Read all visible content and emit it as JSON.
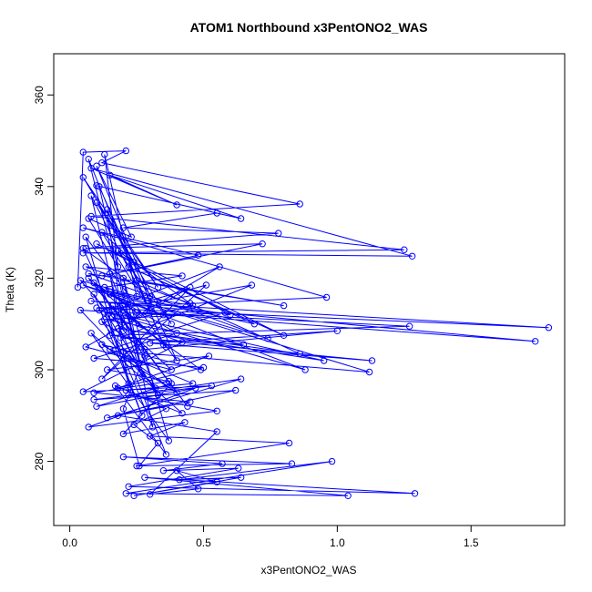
{
  "chart_data": {
    "type": "line",
    "title": "ATOM1 Northbound x3PentONO2_WAS",
    "xlabel": "x3PentONO2_WAS",
    "ylabel": "Theta (K)",
    "xlim": [
      -0.06,
      1.85
    ],
    "ylim": [
      266,
      369
    ],
    "xticks": [
      0.0,
      0.5,
      1.0,
      1.5
    ],
    "xtick_labels": [
      "0.0",
      "0.5",
      "1.0",
      "1.5"
    ],
    "yticks": [
      280,
      300,
      320,
      340,
      360
    ],
    "ytick_labels": [
      "280",
      "300",
      "320",
      "340",
      "360"
    ],
    "grid": false,
    "marker": "open-circle",
    "color": "#0000ff",
    "series": [
      {
        "values": [
          [
            0.03,
            318.0
          ],
          [
            0.05,
            347.5
          ],
          [
            0.21,
            347.8
          ],
          [
            0.12,
            345.2
          ],
          [
            0.86,
            336.2
          ],
          [
            0.08,
            333.5
          ],
          [
            1.25,
            326.2
          ],
          [
            0.05,
            325.5
          ],
          [
            1.28,
            324.8
          ],
          [
            0.08,
            344.0
          ],
          [
            0.4,
            336.0
          ],
          [
            0.15,
            342.5
          ],
          [
            0.64,
            333.0
          ],
          [
            0.1,
            340.2
          ],
          [
            0.55,
            334.2
          ],
          [
            0.2,
            331.0
          ],
          [
            0.78,
            329.8
          ],
          [
            0.06,
            326.5
          ],
          [
            0.72,
            327.5
          ],
          [
            0.12,
            320.5
          ],
          [
            0.48,
            325.0
          ],
          [
            0.05,
            331.0
          ],
          [
            0.96,
            315.8
          ],
          [
            0.1,
            313.5
          ],
          [
            1.79,
            309.2
          ],
          [
            0.08,
            315.0
          ],
          [
            1.74,
            306.2
          ],
          [
            0.25,
            312.5
          ],
          [
            1.27,
            309.5
          ],
          [
            0.15,
            307.5
          ],
          [
            1.13,
            302.0
          ],
          [
            0.3,
            305.8
          ],
          [
            1.0,
            308.5
          ],
          [
            0.2,
            304.0
          ],
          [
            1.12,
            299.5
          ],
          [
            0.05,
            318.5
          ],
          [
            0.88,
            300.0
          ],
          [
            0.11,
            313.0
          ],
          [
            0.95,
            302.0
          ],
          [
            0.18,
            309.0
          ],
          [
            0.86,
            303.5
          ],
          [
            0.25,
            319.5
          ],
          [
            0.8,
            314.0
          ],
          [
            0.07,
            321.0
          ],
          [
            0.74,
            306.8
          ],
          [
            0.15,
            317.0
          ],
          [
            0.69,
            310.0
          ],
          [
            0.22,
            322.5
          ],
          [
            0.8,
            307.5
          ],
          [
            0.1,
            327.5
          ],
          [
            0.6,
            312.0
          ],
          [
            0.29,
            315.0
          ],
          [
            0.51,
            318.5
          ],
          [
            0.12,
            298.0
          ],
          [
            0.45,
            318.0
          ],
          [
            0.06,
            305.0
          ],
          [
            0.38,
            300.0
          ],
          [
            0.16,
            311.5
          ],
          [
            0.42,
            306.0
          ],
          [
            0.05,
            295.2
          ],
          [
            0.53,
            296.5
          ],
          [
            0.09,
            293.5
          ],
          [
            0.62,
            295.5
          ],
          [
            0.14,
            289.5
          ],
          [
            0.64,
            298.0
          ],
          [
            0.22,
            294.5
          ],
          [
            0.55,
            291.0
          ],
          [
            0.07,
            287.5
          ],
          [
            0.47,
            296.0
          ],
          [
            0.1,
            292.0
          ],
          [
            0.38,
            297.0
          ],
          [
            0.2,
            286.0
          ],
          [
            0.43,
            288.5
          ],
          [
            0.3,
            285.5
          ],
          [
            0.82,
            284.0
          ],
          [
            0.25,
            279.0
          ],
          [
            0.83,
            279.5
          ],
          [
            0.2,
            281.0
          ],
          [
            0.57,
            279.5
          ],
          [
            0.35,
            278.0
          ],
          [
            0.63,
            278.5
          ],
          [
            0.22,
            274.5
          ],
          [
            1.29,
            273.0
          ],
          [
            0.28,
            276.5
          ],
          [
            1.04,
            272.5
          ],
          [
            0.21,
            273.0
          ],
          [
            0.98,
            280.0
          ],
          [
            0.41,
            276.0
          ],
          [
            0.64,
            276.5
          ],
          [
            0.24,
            272.5
          ],
          [
            0.55,
            275.5
          ],
          [
            0.4,
            278.0
          ],
          [
            0.48,
            274.0
          ],
          [
            0.3,
            272.8
          ],
          [
            0.55,
            286.5
          ],
          [
            0.18,
            290.0
          ],
          [
            0.45,
            293.0
          ],
          [
            0.09,
            295.0
          ],
          [
            0.37,
            297.5
          ],
          [
            0.14,
            300.0
          ],
          [
            0.52,
            303.0
          ],
          [
            0.18,
            296.0
          ],
          [
            0.5,
            300.5
          ],
          [
            0.09,
            302.5
          ],
          [
            0.4,
            308.0
          ],
          [
            0.15,
            316.5
          ],
          [
            0.35,
            312.0
          ],
          [
            0.04,
            313.0
          ],
          [
            0.32,
            296.0
          ],
          [
            0.12,
            310.5
          ],
          [
            0.28,
            304.5
          ],
          [
            0.07,
            320.0
          ],
          [
            0.26,
            312.0
          ],
          [
            0.13,
            318.0
          ],
          [
            0.42,
            320.5
          ],
          [
            0.06,
            322.5
          ],
          [
            0.45,
            314.5
          ],
          [
            0.18,
            326.0
          ],
          [
            0.38,
            310.0
          ],
          [
            0.1,
            336.5
          ],
          [
            0.33,
            318.0
          ],
          [
            0.05,
            342.0
          ],
          [
            0.24,
            323.5
          ],
          [
            0.12,
            330.0
          ],
          [
            0.3,
            313.0
          ],
          [
            0.08,
            338.0
          ],
          [
            0.2,
            308.5
          ],
          [
            0.14,
            335.0
          ],
          [
            0.35,
            305.5
          ],
          [
            0.07,
            346.0
          ],
          [
            0.26,
            301.5
          ],
          [
            0.11,
            340.0
          ],
          [
            0.4,
            302.0
          ],
          [
            0.06,
            329.0
          ],
          [
            0.22,
            297.0
          ],
          [
            0.15,
            321.0
          ],
          [
            0.33,
            294.5
          ],
          [
            0.09,
            316.5
          ],
          [
            0.27,
            290.0
          ],
          [
            0.13,
            312.5
          ],
          [
            0.31,
            287.5
          ],
          [
            0.2,
            320.0
          ],
          [
            0.37,
            284.5
          ],
          [
            0.08,
            308.0
          ],
          [
            0.42,
            290.5
          ],
          [
            0.17,
            296.5
          ],
          [
            0.36,
            281.5
          ],
          [
            0.22,
            302.5
          ],
          [
            0.4,
            295.0
          ],
          [
            0.12,
            305.5
          ],
          [
            0.49,
            300.0
          ],
          [
            0.16,
            314.0
          ],
          [
            0.44,
            292.0
          ],
          [
            0.09,
            319.0
          ],
          [
            0.36,
            305.0
          ],
          [
            0.19,
            313.5
          ],
          [
            0.27,
            298.5
          ],
          [
            0.05,
            326.5
          ],
          [
            0.3,
            316.0
          ],
          [
            0.1,
            344.5
          ],
          [
            0.23,
            329.0
          ],
          [
            0.07,
            333.0
          ],
          [
            0.18,
            322.5
          ],
          [
            0.13,
            347.0
          ],
          [
            0.25,
            316.0
          ],
          [
            0.04,
            319.5
          ],
          [
            0.16,
            311.5
          ],
          [
            0.28,
            303.0
          ],
          [
            0.2,
            291.5
          ],
          [
            0.26,
            279.0
          ],
          [
            0.33,
            284.0
          ],
          [
            0.24,
            288.0
          ],
          [
            0.36,
            291.5
          ],
          [
            0.21,
            295.5
          ],
          [
            0.46,
            297.0
          ],
          [
            0.15,
            304.5
          ],
          [
            0.58,
            312.5
          ],
          [
            0.13,
            311.0
          ],
          [
            0.65,
            305.5
          ],
          [
            0.19,
            307.0
          ],
          [
            0.68,
            318.5
          ],
          [
            0.14,
            313.0
          ],
          [
            0.56,
            322.5
          ],
          [
            0.23,
            311.0
          ],
          [
            0.46,
            314.0
          ],
          [
            0.11,
            317.5
          ]
        ]
      }
    ]
  }
}
